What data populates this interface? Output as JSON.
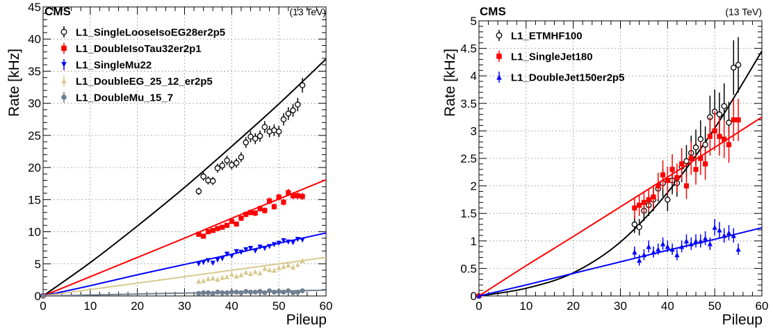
{
  "chart_data": [
    {
      "type": "scatter",
      "experiment": "CMS",
      "energy": "(13 TeV)",
      "xlabel": "Pileup",
      "ylabel": "Rate [kHz]",
      "xlim": [
        0,
        60
      ],
      "ylim": [
        0,
        45
      ],
      "xticks": [
        "0",
        "10",
        "20",
        "30",
        "40",
        "50",
        "60"
      ],
      "yticks": [
        "0",
        "5",
        "10",
        "15",
        "20",
        "25",
        "30",
        "35",
        "40",
        "45"
      ],
      "grid": true,
      "legend_position": "top-left",
      "series": [
        {
          "name": "L1_SingleLooseIsoEG28er2p5",
          "color": "#000000",
          "marker": "open-circle",
          "x": [
            33,
            34,
            35,
            36,
            37,
            38,
            39,
            40,
            41,
            42,
            43,
            44,
            45,
            46,
            47,
            48,
            49,
            50,
            51,
            52,
            53,
            54,
            55
          ],
          "y": [
            16.3,
            18.6,
            18.0,
            17.9,
            19.9,
            20.3,
            21.1,
            20.4,
            20.7,
            21.6,
            23.9,
            24.8,
            24.5,
            24.9,
            26.3,
            25.6,
            25.8,
            25.6,
            27.5,
            28.4,
            28.9,
            29.8,
            32.8
          ],
          "fit": [
            [
              0,
              0
            ],
            [
              10,
              5.2
            ],
            [
              20,
              10.9
            ],
            [
              30,
              16.9
            ],
            [
              40,
              23.3
            ],
            [
              50,
              29.9
            ],
            [
              60,
              36.9
            ]
          ]
        },
        {
          "name": "L1_DoubleIsoTau32er2p1",
          "color": "#ff0000",
          "marker": "filled-square",
          "x": [
            33,
            34,
            35,
            36,
            37,
            38,
            39,
            40,
            41,
            42,
            43,
            44,
            45,
            46,
            47,
            48,
            49,
            50,
            51,
            52,
            53,
            54,
            55
          ],
          "y": [
            9.6,
            9.3,
            10.0,
            10.2,
            10.5,
            10.7,
            11.0,
            11.6,
            11.2,
            12.1,
            12.7,
            13.0,
            12.9,
            13.6,
            13.3,
            14.8,
            13.9,
            15.4,
            14.6,
            16.1,
            15.6,
            15.6,
            15.5
          ],
          "fit": [
            [
              0,
              0
            ],
            [
              10,
              3.0
            ],
            [
              20,
              6.0
            ],
            [
              30,
              9.0
            ],
            [
              40,
              12.1
            ],
            [
              50,
              15.1
            ],
            [
              60,
              18.1
            ]
          ]
        },
        {
          "name": "L1_SingleMu22",
          "color": "#0000ff",
          "marker": "filled-triangle-down",
          "x": [
            33,
            34,
            35,
            36,
            37,
            38,
            39,
            40,
            41,
            42,
            43,
            44,
            45,
            46,
            47,
            48,
            49,
            50,
            51,
            52,
            53,
            54,
            55
          ],
          "y": [
            5.0,
            5.2,
            5.5,
            5.1,
            5.6,
            5.8,
            6.5,
            6.2,
            6.9,
            6.8,
            7.2,
            7.4,
            7.0,
            7.6,
            7.4,
            7.7,
            8.0,
            8.2,
            8.6,
            8.4,
            8.3,
            8.8,
            8.7
          ],
          "fit": [
            [
              0,
              0
            ],
            [
              10,
              1.6
            ],
            [
              20,
              3.3
            ],
            [
              30,
              4.9
            ],
            [
              40,
              6.5
            ],
            [
              50,
              8.2
            ],
            [
              60,
              9.8
            ]
          ]
        },
        {
          "name": "L1_DoubleEG_25_12_er2p5",
          "color": "#d8c98e",
          "marker": "filled-triangle-up",
          "x": [
            33,
            34,
            35,
            36,
            37,
            38,
            39,
            40,
            41,
            42,
            43,
            44,
            45,
            46,
            47,
            48,
            49,
            50,
            51,
            52,
            53,
            54,
            55
          ],
          "y": [
            2.3,
            2.4,
            2.7,
            2.8,
            2.6,
            2.9,
            3.0,
            3.4,
            3.1,
            3.3,
            3.7,
            3.5,
            3.8,
            3.6,
            4.3,
            4.1,
            4.0,
            4.4,
            4.6,
            4.8,
            4.5,
            4.9,
            5.5
          ],
          "fit": [
            [
              0,
              0
            ],
            [
              10,
              1.0
            ],
            [
              20,
              2.0
            ],
            [
              30,
              3.0
            ],
            [
              40,
              4.0
            ],
            [
              50,
              5.0
            ],
            [
              60,
              6.0
            ]
          ]
        },
        {
          "name": "L1_DoubleMu_15_7",
          "color": "#708090",
          "marker": "filled-circle",
          "x": [
            33,
            34,
            35,
            36,
            37,
            38,
            39,
            40,
            41,
            42,
            43,
            44,
            45,
            46,
            47,
            48,
            49,
            50,
            51,
            52,
            53,
            54,
            55
          ],
          "y": [
            0.4,
            0.5,
            0.5,
            0.4,
            0.6,
            0.5,
            0.5,
            0.6,
            0.6,
            0.5,
            0.7,
            0.6,
            0.6,
            0.7,
            0.5,
            0.8,
            0.6,
            0.7,
            0.6,
            0.8,
            0.5,
            0.6,
            0.8
          ],
          "fit": [
            [
              0,
              0
            ],
            [
              10,
              0.15
            ],
            [
              20,
              0.3
            ],
            [
              30,
              0.45
            ],
            [
              40,
              0.6
            ],
            [
              50,
              0.75
            ],
            [
              60,
              0.9
            ]
          ]
        }
      ]
    },
    {
      "type": "scatter",
      "experiment": "CMS",
      "energy": "(13 TeV)",
      "xlabel": "Pileup",
      "ylabel": "Rate [kHz]",
      "xlim": [
        0,
        60
      ],
      "ylim": [
        0,
        5
      ],
      "xticks": [
        "0",
        "10",
        "20",
        "30",
        "40",
        "50",
        "60"
      ],
      "yticks": [
        "0",
        "0.5",
        "1",
        "1.5",
        "2",
        "2.5",
        "3",
        "3.5",
        "4",
        "4.5",
        "5"
      ],
      "grid": true,
      "legend_position": "top-left",
      "series": [
        {
          "name": "L1_ETMHF100",
          "color": "#000000",
          "marker": "open-circle",
          "x": [
            33,
            34,
            35,
            36,
            37,
            38,
            39,
            40,
            41,
            42,
            43,
            44,
            45,
            46,
            47,
            48,
            49,
            50,
            51,
            52,
            53,
            54,
            55
          ],
          "y": [
            1.3,
            1.25,
            1.55,
            1.65,
            1.75,
            1.95,
            2.05,
            1.75,
            2.1,
            2.05,
            2.35,
            2.45,
            2.6,
            2.7,
            2.85,
            2.75,
            3.25,
            3.35,
            3.3,
            3.45,
            3.15,
            4.15,
            4.2
          ],
          "fit": [
            [
              0,
              0
            ],
            [
              10,
              0.14
            ],
            [
              20,
              0.42
            ],
            [
              30,
              0.98
            ],
            [
              40,
              1.88
            ],
            [
              50,
              3.05
            ],
            [
              60,
              4.45
            ]
          ]
        },
        {
          "name": "L1_SingleJet180",
          "color": "#ff0000",
          "marker": "filled-square",
          "x": [
            33,
            34,
            35,
            36,
            37,
            38,
            39,
            40,
            41,
            42,
            43,
            44,
            45,
            46,
            47,
            48,
            49,
            50,
            51,
            52,
            53,
            54,
            55
          ],
          "y": [
            1.6,
            1.65,
            1.7,
            1.75,
            1.8,
            2.0,
            2.2,
            2.1,
            2.3,
            2.15,
            2.4,
            2.0,
            2.5,
            2.3,
            2.5,
            2.4,
            2.9,
            3.0,
            2.9,
            2.85,
            2.75,
            3.2,
            3.2
          ],
          "fit": [
            [
              0,
              0
            ],
            [
              10,
              0.55
            ],
            [
              20,
              1.08
            ],
            [
              30,
              1.62
            ],
            [
              40,
              2.16
            ],
            [
              50,
              2.7
            ],
            [
              60,
              3.25
            ]
          ]
        },
        {
          "name": "L1_DoubleJet150er2p5",
          "color": "#0000ff",
          "marker": "filled-triangle-up",
          "x": [
            33,
            34,
            35,
            36,
            37,
            38,
            39,
            40,
            41,
            42,
            43,
            44,
            45,
            46,
            47,
            48,
            49,
            50,
            51,
            52,
            53,
            54,
            55
          ],
          "y": [
            0.8,
            0.65,
            0.75,
            0.9,
            0.8,
            0.85,
            0.95,
            0.9,
            0.85,
            0.75,
            0.9,
            1.0,
            0.95,
            1.0,
            1.0,
            1.05,
            0.95,
            1.25,
            1.2,
            1.1,
            1.15,
            1.1,
            0.85
          ],
          "fit": [
            [
              0,
              0
            ],
            [
              10,
              0.2
            ],
            [
              20,
              0.41
            ],
            [
              30,
              0.62
            ],
            [
              40,
              0.83
            ],
            [
              50,
              1.03
            ],
            [
              60,
              1.24
            ]
          ]
        }
      ]
    }
  ]
}
